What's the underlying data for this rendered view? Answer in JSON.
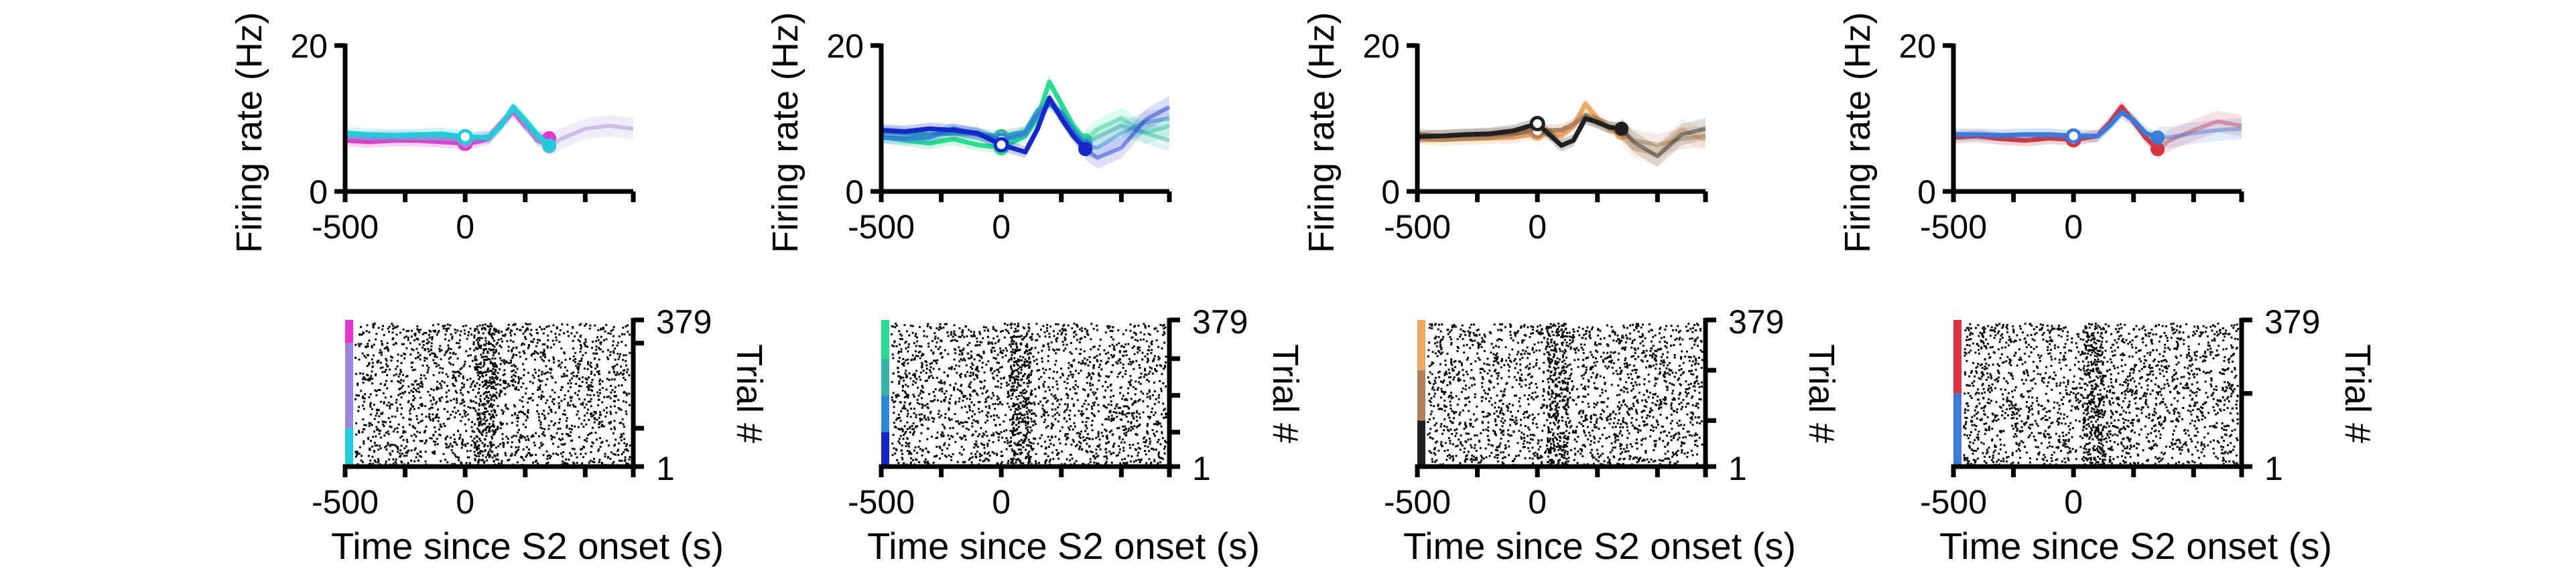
{
  "figure": {
    "xlabel_bottom": "Time since S2 onset (s)",
    "ylabel_top": "Firing rate (Hz)",
    "ylabel_bottom": "Trial #"
  },
  "chart_data": [
    {
      "type": "line",
      "panel": "rate-1",
      "x_ticks": [
        "-500",
        "0"
      ],
      "y_ticks": [
        "0",
        "20"
      ],
      "xlim": [
        -500,
        700
      ],
      "ylim": [
        0,
        20
      ],
      "series": [
        {
          "color": "#e633cc",
          "x": [
            -500,
            -400,
            -300,
            -200,
            -100,
            0,
            50,
            100,
            200,
            250,
            300,
            350
          ],
          "values": [
            7,
            6.8,
            7,
            7,
            6.8,
            6.6,
            6.8,
            7.3,
            11,
            9,
            7.5,
            7.3
          ]
        },
        {
          "color": "#9a88d8",
          "x": [
            -500,
            -400,
            -300,
            -200,
            -100,
            0,
            100,
            200,
            250,
            300,
            350,
            400,
            500,
            600,
            700
          ],
          "values": [
            7.6,
            7.4,
            7.5,
            7.4,
            7.3,
            7.1,
            7.5,
            11.2,
            9.2,
            7,
            6.2,
            7.2,
            8.6,
            9,
            8.6
          ]
        },
        {
          "color": "#22ccd8",
          "x": [
            -500,
            -400,
            -300,
            -200,
            -100,
            0,
            100,
            150,
            200,
            250,
            300,
            350
          ],
          "values": [
            8,
            7.8,
            7.7,
            7.8,
            7.9,
            7.5,
            7.4,
            9,
            11.6,
            9.8,
            7.8,
            6.3
          ]
        }
      ]
    },
    {
      "type": "line",
      "panel": "rate-2",
      "x_ticks": [
        "-500",
        "0"
      ],
      "y_ticks": [
        "0",
        "20"
      ],
      "xlim": [
        -500,
        700
      ],
      "ylim": [
        0,
        20
      ],
      "series": [
        {
          "color": "#2adc8e",
          "x": [
            -500,
            -400,
            -300,
            -200,
            -100,
            0,
            100,
            150,
            200,
            250,
            300,
            350,
            400,
            500,
            600,
            700
          ],
          "values": [
            7.5,
            7,
            6.6,
            7.2,
            6.4,
            6,
            7.6,
            10,
            15,
            12,
            9,
            7,
            8.5,
            10,
            8,
            9
          ]
        },
        {
          "color": "#36b4a6",
          "x": [
            -500,
            -400,
            -300,
            -200,
            -100,
            0,
            100,
            150,
            200,
            250,
            300,
            350,
            400,
            500,
            600,
            700
          ],
          "values": [
            8.2,
            8,
            7.8,
            8,
            7.9,
            7.5,
            8.2,
            11,
            12.5,
            10.5,
            8,
            6.5,
            7.5,
            9,
            8,
            7
          ]
        },
        {
          "color": "#2f88d4",
          "x": [
            -500,
            -400,
            -300,
            -200,
            -100,
            0,
            100,
            150,
            200,
            250,
            300,
            350,
            400,
            500,
            600,
            700
          ],
          "values": [
            7.4,
            7.2,
            7.4,
            8.6,
            7.8,
            7,
            8,
            10.5,
            12,
            10.8,
            8.4,
            6.2,
            6,
            8,
            9.5,
            10
          ]
        },
        {
          "color": "#1428c8",
          "x": [
            -500,
            -400,
            -300,
            -200,
            -100,
            0,
            100,
            150,
            200,
            250,
            300,
            350,
            400,
            500,
            600,
            700
          ],
          "values": [
            8.4,
            8.2,
            8.6,
            8.4,
            8,
            6.4,
            5.4,
            8.5,
            12.8,
            10,
            7.6,
            5.8,
            4.6,
            6,
            9.8,
            11.6
          ]
        }
      ]
    },
    {
      "type": "line",
      "panel": "rate-3",
      "x_ticks": [
        "-500",
        "0"
      ],
      "y_ticks": [
        "0",
        "20"
      ],
      "xlim": [
        -500,
        700
      ],
      "ylim": [
        0,
        20
      ],
      "series": [
        {
          "color": "#f0a866",
          "x": [
            -500,
            -400,
            -300,
            -200,
            -100,
            0,
            100,
            150,
            200,
            250,
            300,
            350,
            400,
            500,
            600,
            700
          ],
          "values": [
            7.2,
            7.1,
            7.2,
            7.3,
            7.4,
            8,
            7.6,
            9,
            12,
            10,
            8.6,
            8,
            6,
            5,
            8.5,
            7
          ]
        },
        {
          "color": "#b0805a",
          "x": [
            -500,
            -400,
            -300,
            -200,
            -100,
            0,
            100,
            150,
            200,
            250,
            300,
            350,
            400,
            500,
            600,
            700
          ],
          "values": [
            7.8,
            7.6,
            7.7,
            7.8,
            8,
            8.3,
            8.4,
            9.2,
            10.4,
            9.4,
            8.8,
            8.4,
            7,
            6.4,
            7.2,
            7.6
          ]
        },
        {
          "color": "#202020",
          "x": [
            -500,
            -400,
            -300,
            -200,
            -100,
            0,
            100,
            150,
            200,
            250,
            300,
            350,
            400,
            500,
            600,
            700
          ],
          "values": [
            7.5,
            7.6,
            7.8,
            7.9,
            8.3,
            9.3,
            6.3,
            7,
            10,
            9.5,
            8.8,
            8.6,
            6.8,
            4.8,
            7.8,
            8.6
          ]
        }
      ]
    },
    {
      "type": "line",
      "panel": "rate-4",
      "x_ticks": [
        "-500",
        "0"
      ],
      "y_ticks": [
        "0",
        "20"
      ],
      "xlim": [
        -500,
        700
      ],
      "ylim": [
        0,
        20
      ],
      "series": [
        {
          "color": "#d8323c",
          "x": [
            -500,
            -400,
            -300,
            -200,
            -100,
            0,
            100,
            150,
            200,
            250,
            300,
            350,
            400,
            500,
            600,
            700
          ],
          "values": [
            7.4,
            7.6,
            7.2,
            7,
            7.3,
            7.1,
            7.6,
            9.4,
            11.6,
            9.6,
            7.4,
            5.8,
            7,
            8.4,
            9.6,
            9
          ]
        },
        {
          "color": "#3c7ad8",
          "x": [
            -500,
            -400,
            -300,
            -200,
            -100,
            0,
            100,
            150,
            200,
            250,
            300,
            350,
            400,
            500,
            600,
            700
          ],
          "values": [
            7.8,
            7.8,
            7.7,
            7.8,
            7.8,
            7.6,
            7.6,
            9,
            10.8,
            9.8,
            8,
            7.4,
            7.4,
            8,
            8.4,
            8.6
          ]
        }
      ]
    },
    {
      "type": "scatter",
      "panel": "raster-1",
      "x_ticks": [
        "-500",
        "0"
      ],
      "y_ticks": [
        "1",
        "379"
      ],
      "ylim": [
        1,
        379
      ],
      "condition_colors": [
        "#e633cc",
        "#9a88d8",
        "#22ccd8"
      ],
      "condition_trials": [
        60,
        220,
        99
      ]
    },
    {
      "type": "scatter",
      "panel": "raster-2",
      "x_ticks": [
        "-500",
        "0"
      ],
      "y_ticks": [
        "1",
        "379"
      ],
      "ylim": [
        1,
        379
      ],
      "condition_colors": [
        "#2adc8e",
        "#36b4a6",
        "#2f88d4",
        "#1428c8"
      ],
      "condition_trials": [
        100,
        95,
        95,
        89
      ]
    },
    {
      "type": "scatter",
      "panel": "raster-3",
      "x_ticks": [
        "-500",
        "0"
      ],
      "y_ticks": [
        "1",
        "379"
      ],
      "ylim": [
        1,
        379
      ],
      "condition_colors": [
        "#f0a866",
        "#b0805a",
        "#202020"
      ],
      "condition_trials": [
        130,
        130,
        119
      ]
    },
    {
      "type": "scatter",
      "panel": "raster-4",
      "x_ticks": [
        "-500",
        "0"
      ],
      "y_ticks": [
        "1",
        "379"
      ],
      "ylim": [
        1,
        379
      ],
      "condition_colors": [
        "#d8323c",
        "#3c7ad8"
      ],
      "condition_trials": [
        190,
        189
      ]
    }
  ]
}
